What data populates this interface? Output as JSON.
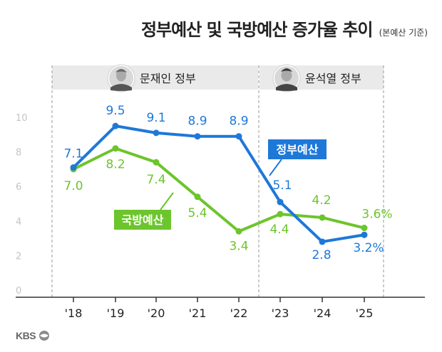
{
  "title": "정부예산 및 국방예산 증가율 추이",
  "subtitle": "(본예산 기준)",
  "colors": {
    "government": "#1e78d8",
    "defense": "#6cc52c",
    "band": "#eaeaea",
    "text": "#222222"
  },
  "periods": [
    {
      "label": "문재인 정부",
      "portrait": "portrait-moon-icon"
    },
    {
      "label": "윤석열 정부",
      "portrait": "portrait-yoon-icon"
    }
  ],
  "logo": "KBS",
  "chart_data": {
    "type": "line",
    "categories": [
      "'18",
      "'19",
      "'20",
      "'21",
      "'22",
      "'23",
      "'24",
      "'25"
    ],
    "y_ticks": [
      "0",
      "2",
      "4",
      "6",
      "8",
      "10"
    ],
    "ylim": [
      0,
      10
    ],
    "unit": "%",
    "grid": false,
    "series": [
      {
        "name": "정부예산",
        "values": [
          7.1,
          9.5,
          9.1,
          8.9,
          8.9,
          5.1,
          2.8,
          3.2
        ],
        "labels": [
          "7.1",
          "9.5",
          "9.1",
          "8.9",
          "8.9",
          "5.1",
          "2.8",
          "3.2%"
        ]
      },
      {
        "name": "국방예산",
        "values": [
          7.0,
          8.2,
          7.4,
          5.4,
          3.4,
          4.4,
          4.2,
          3.6
        ],
        "labels": [
          "7.0",
          "8.2",
          "7.4",
          "5.4",
          "3.4",
          "4.4",
          "4.2",
          "3.6%"
        ]
      }
    ]
  }
}
